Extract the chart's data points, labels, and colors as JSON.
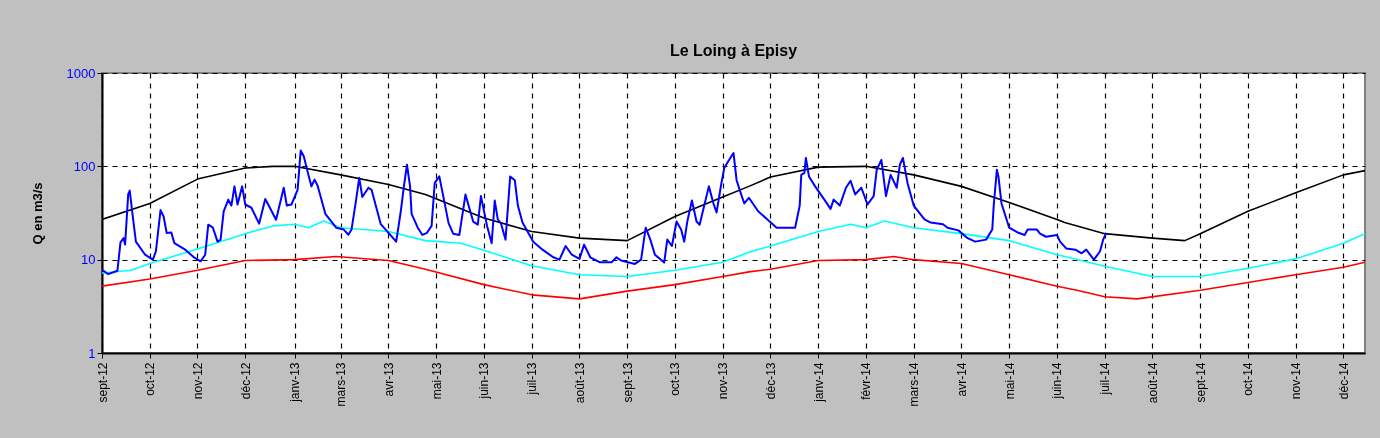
{
  "chart_data": {
    "type": "line",
    "title": "Le Loing à Episy",
    "ylabel": "Q en m3/s",
    "log": "y",
    "grid": true,
    "line_style": "solid",
    "marker": "none",
    "ylim": [
      1,
      1000
    ],
    "yticks": [
      1,
      10,
      100,
      1000
    ],
    "xlim": [
      "2012-09-28",
      "2014-12-27"
    ],
    "xticks": [
      {
        "value": "2012-09-28",
        "label": "sept-12"
      },
      {
        "value": "2012-10-29",
        "label": "oct-12"
      },
      {
        "value": "2012-11-29",
        "label": "nov-12"
      },
      {
        "value": "2012-12-30",
        "label": "déc-12"
      },
      {
        "value": "2013-01-31",
        "label": "janv-13"
      },
      {
        "value": "2013-03-02",
        "label": "mars-13"
      },
      {
        "value": "2013-04-02",
        "label": "avr-13"
      },
      {
        "value": "2013-05-03",
        "label": "mai-13"
      },
      {
        "value": "2013-06-03",
        "label": "juin-13"
      },
      {
        "value": "2013-07-04",
        "label": "juil-13"
      },
      {
        "value": "2013-08-04",
        "label": "août-13"
      },
      {
        "value": "2013-09-04",
        "label": "sept-13"
      },
      {
        "value": "2013-10-05",
        "label": "oct-13"
      },
      {
        "value": "2013-11-05",
        "label": "nov-13"
      },
      {
        "value": "2013-12-06",
        "label": "déc-13"
      },
      {
        "value": "2014-01-06",
        "label": "janv-14"
      },
      {
        "value": "2014-02-06",
        "label": "févr-14"
      },
      {
        "value": "2014-03-09",
        "label": "mars-14"
      },
      {
        "value": "2014-04-09",
        "label": "avr-14"
      },
      {
        "value": "2014-05-10",
        "label": "mai-14"
      },
      {
        "value": "2014-06-10",
        "label": "juin-14"
      },
      {
        "value": "2014-07-11",
        "label": "juil-14"
      },
      {
        "value": "2014-08-11",
        "label": "août-14"
      },
      {
        "value": "2014-09-11",
        "label": "sept-14"
      },
      {
        "value": "2014-10-12",
        "label": "oct-14"
      },
      {
        "value": "2014-11-12",
        "label": "nov-14"
      },
      {
        "value": "2014-12-13",
        "label": "déc-14"
      }
    ],
    "series": [
      {
        "color": "#000000",
        "x": [
          "2012-09-28",
          "2012-10-29",
          "2012-11-29",
          "2012-12-30",
          "2013-01-17",
          "2013-01-31",
          "2013-03-02",
          "2013-04-02",
          "2013-04-26",
          "2013-06-03",
          "2013-07-04",
          "2013-08-04",
          "2013-09-04",
          "2013-10-05",
          "2013-11-05",
          "2013-11-22",
          "2013-12-06",
          "2014-01-06",
          "2014-02-06",
          "2014-03-09",
          "2014-04-09",
          "2014-05-10",
          "2014-06-10",
          "2014-06-15",
          "2014-07-11",
          "2014-08-11",
          "2014-09-01",
          "2014-09-11",
          "2014-10-12",
          "2014-11-12",
          "2014-12-13",
          "2014-12-27"
        ],
        "values": [
          27,
          40,
          73,
          96,
          100,
          100,
          81,
          64,
          50,
          28,
          20,
          17,
          16,
          29,
          47,
          61,
          77,
          98,
          100,
          81,
          61,
          41,
          27,
          25,
          19,
          17,
          16,
          19,
          33,
          52,
          81,
          90
        ]
      },
      {
        "color": "#00ffff",
        "x": [
          "2012-09-28",
          "2012-10-17",
          "2012-10-29",
          "2012-11-29",
          "2012-12-30",
          "2013-01-17",
          "2013-01-31",
          "2013-02-09",
          "2013-02-19",
          "2013-03-02",
          "2013-04-02",
          "2013-04-26",
          "2013-05-19",
          "2013-06-03",
          "2013-07-04",
          "2013-08-04",
          "2013-09-04",
          "2013-10-05",
          "2013-11-05",
          "2013-11-22",
          "2013-12-06",
          "2014-01-06",
          "2014-01-27",
          "2014-02-06",
          "2014-02-18",
          "2014-03-09",
          "2014-04-09",
          "2014-05-10",
          "2014-06-10",
          "2014-06-15",
          "2014-07-11",
          "2014-08-11",
          "2014-09-11",
          "2014-10-12",
          "2014-11-12",
          "2014-12-13",
          "2014-12-27"
        ],
        "values": [
          7.2,
          7.7,
          9.1,
          13,
          19,
          23,
          24,
          22,
          26,
          22,
          20,
          16,
          15,
          12.6,
          8.6,
          6.9,
          6.6,
          7.7,
          9.4,
          12,
          14,
          20,
          24,
          22,
          26,
          22,
          19,
          16,
          11.3,
          10.8,
          8.5,
          6.6,
          6.6,
          8.1,
          10.2,
          15,
          19
        ]
      },
      {
        "color": "#ff0000",
        "x": [
          "2012-09-28",
          "2012-10-29",
          "2012-11-29",
          "2012-12-30",
          "2013-01-31",
          "2013-02-27",
          "2013-04-02",
          "2013-04-26",
          "2013-06-03",
          "2013-07-04",
          "2013-08-04",
          "2013-09-04",
          "2013-10-05",
          "2013-11-05",
          "2013-11-22",
          "2013-12-06",
          "2014-01-06",
          "2014-02-06",
          "2014-02-24",
          "2014-03-09",
          "2014-04-09",
          "2014-05-10",
          "2014-06-10",
          "2014-06-23",
          "2014-07-11",
          "2014-08-01",
          "2014-09-11",
          "2014-10-12",
          "2014-11-12",
          "2014-12-13",
          "2014-12-27"
        ],
        "values": [
          5.2,
          6.2,
          7.7,
          9.8,
          10,
          10.8,
          9.8,
          7.9,
          5.4,
          4.2,
          3.8,
          4.6,
          5.4,
          6.6,
          7.4,
          7.9,
          9.8,
          10,
          10.8,
          10,
          9.1,
          6.9,
          5.2,
          4.7,
          4.0,
          3.8,
          4.7,
          5.7,
          6.9,
          8.3,
          9.4
        ]
      },
      {
        "color": "#0000ff",
        "x": [
          "2012-09-28",
          "2012-10-02",
          "2012-10-08",
          "2012-10-10",
          "2012-10-12",
          "2012-10-13",
          "2012-10-15",
          "2012-10-16",
          "2012-10-18",
          "2012-10-20",
          "2012-10-26",
          "2012-10-31",
          "2012-11-02",
          "2012-11-05",
          "2012-11-07",
          "2012-11-09",
          "2012-11-12",
          "2012-11-14",
          "2012-11-21",
          "2012-11-27",
          "2012-12-01",
          "2012-12-04",
          "2012-12-06",
          "2012-12-09",
          "2012-12-12",
          "2012-12-14",
          "2012-12-16",
          "2012-12-19",
          "2012-12-21",
          "2012-12-23",
          "2012-12-25",
          "2012-12-28",
          "2012-12-30",
          "2013-01-03",
          "2013-01-08",
          "2013-01-12",
          "2013-01-15",
          "2013-01-19",
          "2013-01-24",
          "2013-01-26",
          "2013-01-29",
          "2013-02-02",
          "2013-02-04",
          "2013-02-06",
          "2013-02-09",
          "2013-02-11",
          "2013-02-13",
          "2013-02-15",
          "2013-02-20",
          "2013-02-27",
          "2013-03-04",
          "2013-03-07",
          "2013-03-09",
          "2013-03-12",
          "2013-03-14",
          "2013-03-16",
          "2013-03-20",
          "2013-03-22",
          "2013-03-28",
          "2013-04-02",
          "2013-04-07",
          "2013-04-10",
          "2013-04-12",
          "2013-04-14",
          "2013-04-16",
          "2013-04-17",
          "2013-04-21",
          "2013-04-24",
          "2013-04-27",
          "2013-04-30",
          "2013-05-02",
          "2013-05-05",
          "2013-05-08",
          "2013-05-11",
          "2013-05-14",
          "2013-05-18",
          "2013-05-22",
          "2013-05-24",
          "2013-05-27",
          "2013-05-30",
          "2013-06-01",
          "2013-06-05",
          "2013-06-08",
          "2013-06-10",
          "2013-06-12",
          "2013-06-14",
          "2013-06-17",
          "2013-06-20",
          "2013-06-23",
          "2013-06-25",
          "2013-06-28",
          "2013-07-05",
          "2013-07-11",
          "2013-07-18",
          "2013-07-22",
          "2013-07-26",
          "2013-07-30",
          "2013-08-04",
          "2013-08-07",
          "2013-08-11",
          "2013-08-17",
          "2013-08-25",
          "2013-08-28",
          "2013-08-31",
          "2013-09-09",
          "2013-09-13",
          "2013-09-16",
          "2013-09-19",
          "2013-09-22",
          "2013-09-28",
          "2013-09-30",
          "2013-10-03",
          "2013-10-06",
          "2013-10-09",
          "2013-10-11",
          "2013-10-13",
          "2013-10-16",
          "2013-10-19",
          "2013-10-21",
          "2013-10-27",
          "2013-10-30",
          "2013-11-01",
          "2013-11-04",
          "2013-11-06",
          "2013-11-08",
          "2013-11-12",
          "2013-11-14",
          "2013-11-16",
          "2013-11-19",
          "2013-11-22",
          "2013-11-28",
          "2013-12-10",
          "2013-12-22",
          "2013-12-25",
          "2013-12-26",
          "2013-12-28",
          "2013-12-29",
          "2013-12-31",
          "2014-01-04",
          "2014-01-10",
          "2014-01-14",
          "2014-01-16",
          "2014-01-20",
          "2014-01-24",
          "2014-01-27",
          "2014-01-30",
          "2014-02-03",
          "2014-02-07",
          "2014-02-11",
          "2014-02-13",
          "2014-02-16",
          "2014-02-19",
          "2014-02-22",
          "2014-02-26",
          "2014-02-28",
          "2014-03-02",
          "2014-03-05",
          "2014-03-09",
          "2014-03-16",
          "2014-03-20",
          "2014-03-28",
          "2014-03-31",
          "2014-04-07",
          "2014-04-13",
          "2014-04-18",
          "2014-04-25",
          "2014-04-29",
          "2014-04-30",
          "2014-05-02",
          "2014-05-03",
          "2014-05-05",
          "2014-05-10",
          "2014-05-16",
          "2014-05-20",
          "2014-05-22",
          "2014-05-28",
          "2014-05-30",
          "2014-06-03",
          "2014-06-10",
          "2014-06-12",
          "2014-06-16",
          "2014-06-22",
          "2014-06-26",
          "2014-06-29",
          "2014-07-04",
          "2014-07-08",
          "2014-07-10",
          "2014-07-12"
        ],
        "values": [
          7.8,
          7,
          7.6,
          15.3,
          17,
          14.5,
          50,
          55,
          29,
          15.6,
          11.3,
          10,
          12.3,
          34,
          29,
          19.3,
          19.5,
          15,
          12.8,
          10.5,
          9.6,
          11.3,
          23.7,
          22,
          15.6,
          16.4,
          33,
          44,
          38,
          61,
          39,
          61,
          39,
          36,
          24.3,
          44.6,
          36,
          26.8,
          59,
          38,
          39,
          56,
          148,
          128,
          81,
          61,
          72,
          62,
          31,
          22,
          21,
          18.5,
          21,
          44,
          75,
          47,
          59,
          56,
          24,
          19.4,
          15.6,
          33,
          61,
          104,
          61,
          31,
          22,
          18.4,
          19.4,
          23,
          66,
          78,
          44,
          24.6,
          19,
          18.4,
          50,
          38,
          25.6,
          23.7,
          48,
          23,
          15,
          43,
          26.8,
          24.6,
          16.4,
          78,
          71,
          38,
          25,
          15.6,
          12.8,
          10.6,
          10,
          14,
          11.3,
          10.2,
          14.5,
          10.6,
          9.4,
          9.4,
          10.6,
          9.8,
          9,
          10,
          22,
          16.4,
          11.3,
          9.3,
          16.4,
          14,
          25.6,
          21,
          15.6,
          25.6,
          43,
          25.6,
          23.7,
          61,
          40,
          32,
          64,
          96,
          109,
          139,
          71,
          56,
          40,
          46,
          33,
          22,
          22,
          38,
          81,
          85,
          123,
          78,
          61,
          44,
          35,
          44,
          38,
          59,
          70,
          50,
          59,
          39,
          48,
          92,
          117,
          48,
          81,
          59,
          104,
          123,
          66,
          38,
          27,
          25,
          24,
          22,
          20.6,
          17,
          15.6,
          16.4,
          21,
          39,
          92,
          78,
          40,
          22,
          19.4,
          18.4,
          21,
          21,
          19,
          17.6,
          18.4,
          15.6,
          13.2,
          12.8,
          11.7,
          12.8,
          10,
          12.3,
          16.4,
          19.4
        ]
      }
    ]
  }
}
